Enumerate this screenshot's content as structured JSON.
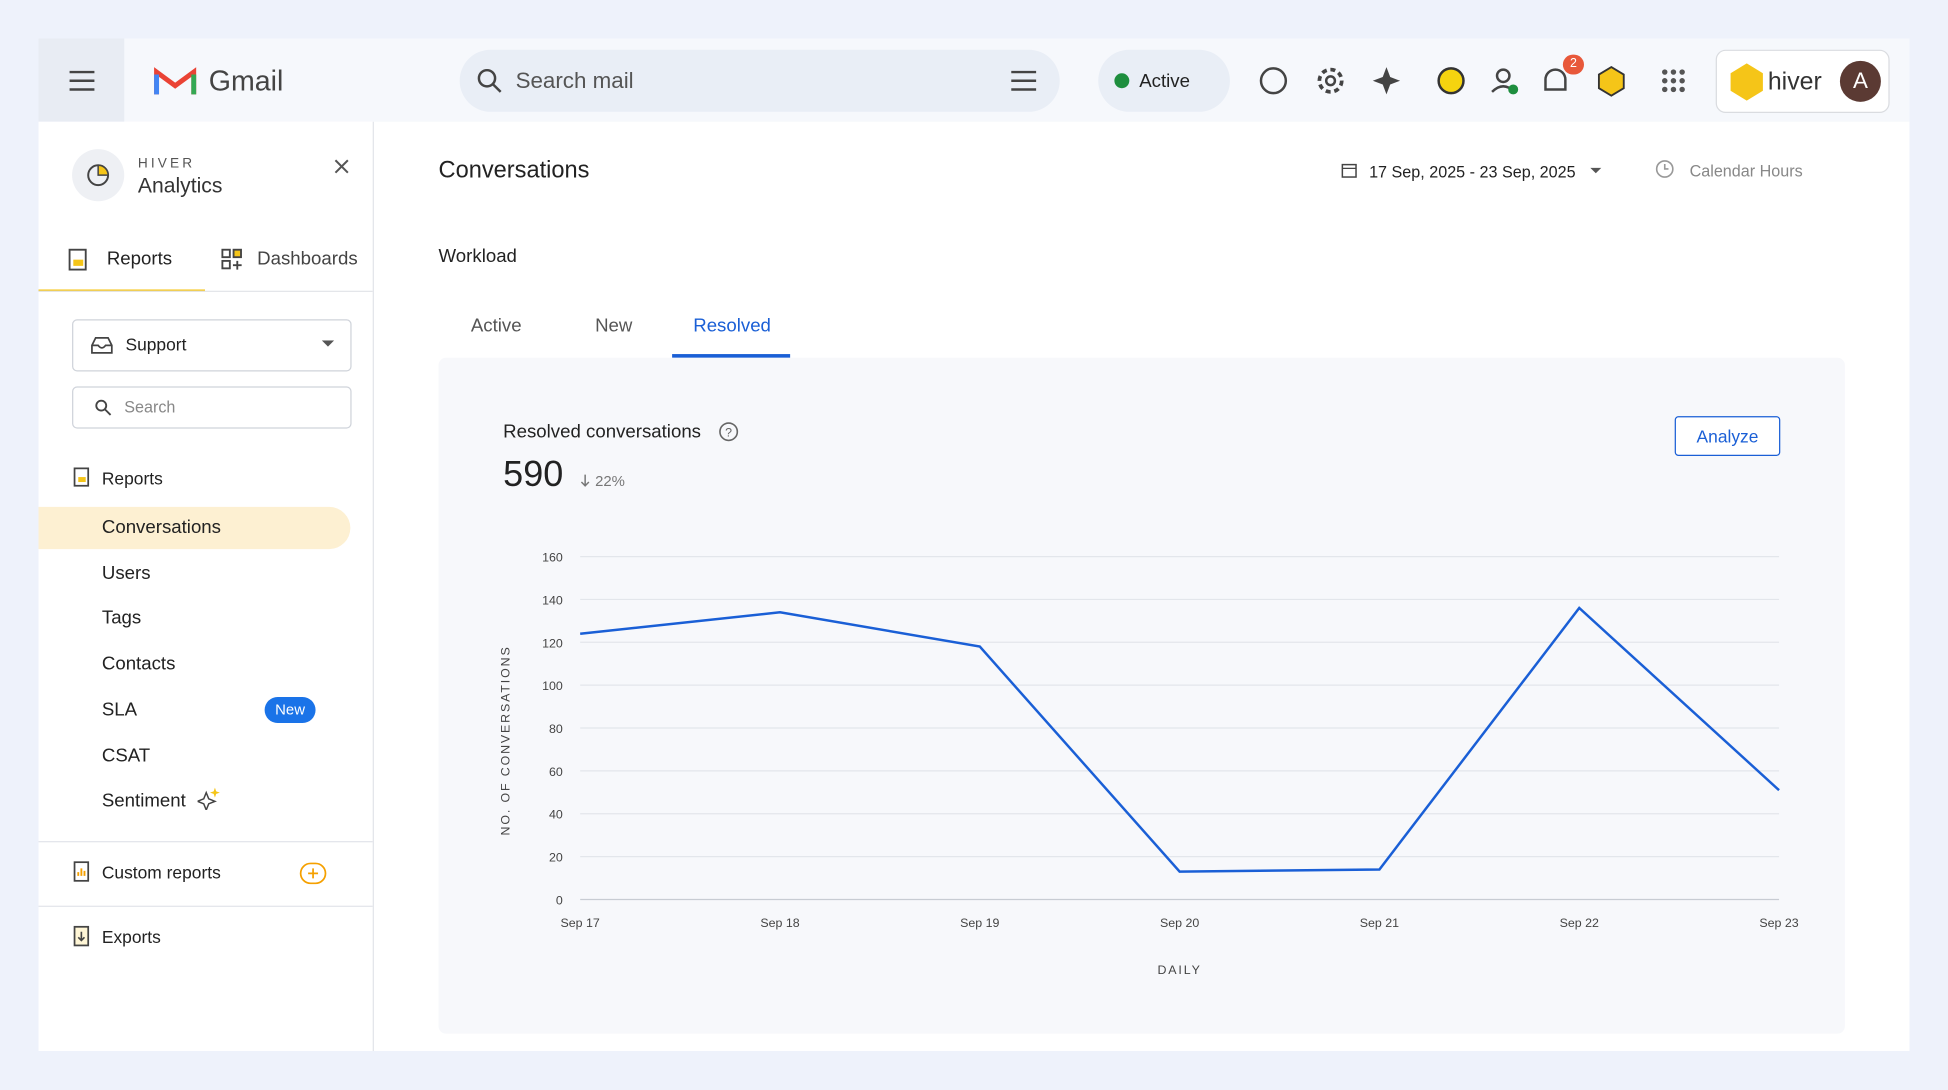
{
  "gmail": {
    "app_name": "Gmail",
    "search_placeholder": "Search mail",
    "status": "Active",
    "notification_count": 2,
    "brand": "hiver",
    "avatar": "A"
  },
  "sidebar": {
    "brand": "HIVER",
    "product": "Analytics",
    "tabs": [
      "Reports",
      "Dashboards"
    ],
    "inbox": "Support",
    "search_placeholder": "Search",
    "section": "Reports",
    "items": [
      "Conversations",
      "Users",
      "Tags",
      "Contacts",
      "SLA",
      "CSAT",
      "Sentiment"
    ],
    "new_badge": "New",
    "custom_reports": "Custom reports",
    "exports": "Exports"
  },
  "main": {
    "title": "Conversations",
    "date_range": "17 Sep, 2025 - 23 Sep, 2025",
    "hours": "Calendar Hours",
    "section": "Workload",
    "tabs": [
      "Active",
      "New",
      "Resolved"
    ],
    "metric_title": "Resolved conversations",
    "metric_value": 590,
    "metric_change": "22%",
    "analyze": "Analyze"
  },
  "chart_data": {
    "type": "line",
    "x_label": "DAILY",
    "y_label": "NO. OF CONVERSATIONS",
    "categories": [
      "Sep 17",
      "Sep 18",
      "Sep 19",
      "Sep 20",
      "Sep 21",
      "Sep 22",
      "Sep 23"
    ],
    "values": [
      124,
      134,
      118,
      13,
      14,
      136,
      51
    ],
    "color": "#1a5fd6",
    "ylim": [
      0,
      160
    ],
    "yticks": [
      0,
      20,
      40,
      60,
      80,
      100,
      120,
      140,
      160
    ],
    "grid": true
  }
}
